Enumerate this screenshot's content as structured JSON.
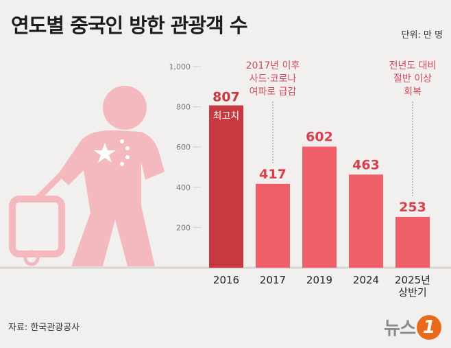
{
  "header": {
    "title": "연도별 중국인 방한 관광객 수",
    "unit": "단위: 만 명"
  },
  "footer": {
    "source": "자료: 한국관광공사",
    "logo_text": "뉴스",
    "logo_mark": "1"
  },
  "colors": {
    "bar": "#ee5f6a",
    "bar_highlight": "#c6393f",
    "value_text": "#d8404f",
    "figure": "#f4b9bf"
  },
  "chart_data": {
    "type": "bar",
    "title": "연도별 중국인 방한 관광객 수",
    "unit": "단위: 만 명",
    "categories": [
      "2016",
      "2017",
      "2019",
      "2024",
      "2025년\n상반기"
    ],
    "values": [
      807,
      417,
      602,
      463,
      253
    ],
    "ylim": [
      0,
      1000
    ],
    "yticks": [
      200,
      400,
      600,
      800,
      1000
    ],
    "highlight_index": 0,
    "highlight_label": "최고치",
    "annotations": [
      {
        "category_index": 1,
        "lines": [
          "2017년 이후",
          "사드·코로나",
          "여파로 급감"
        ]
      },
      {
        "category_index": 4,
        "lines": [
          "전년도 대비",
          "절반 이상",
          "회복"
        ]
      }
    ]
  }
}
